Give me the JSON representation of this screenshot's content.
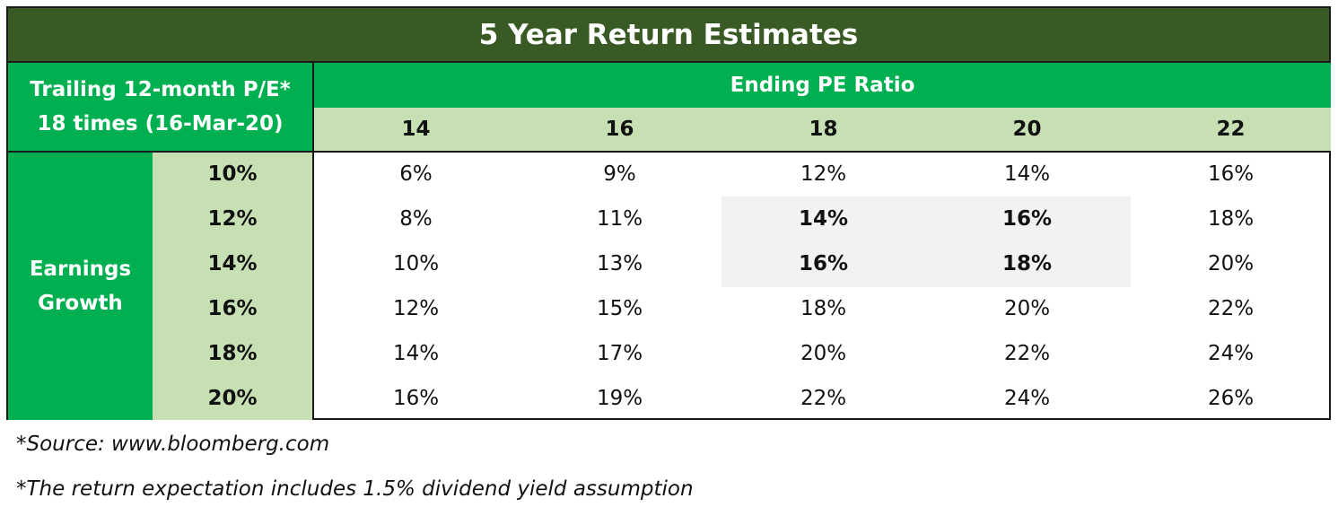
{
  "title": "5 Year Return Estimates",
  "corner": {
    "line1": "Trailing 12-month P/E*",
    "line2": "18 times (16-Mar-20)"
  },
  "column_group": "Ending PE Ratio",
  "row_group": {
    "line1": "Earnings",
    "line2": "Growth"
  },
  "pe_ratios": [
    "14",
    "16",
    "18",
    "20",
    "22"
  ],
  "earnings_growth": [
    "10%",
    "12%",
    "14%",
    "16%",
    "18%",
    "20%"
  ],
  "returns": [
    [
      "6%",
      "9%",
      "12%",
      "14%",
      "16%"
    ],
    [
      "8%",
      "11%",
      "14%",
      "16%",
      "18%"
    ],
    [
      "10%",
      "13%",
      "16%",
      "18%",
      "20%"
    ],
    [
      "12%",
      "15%",
      "18%",
      "20%",
      "22%"
    ],
    [
      "14%",
      "17%",
      "20%",
      "22%",
      "24%"
    ],
    [
      "16%",
      "19%",
      "22%",
      "24%",
      "26%"
    ]
  ],
  "highlight": {
    "rows": [
      1,
      2
    ],
    "cols": [
      2,
      3
    ],
    "color": "#f2f2f2"
  },
  "colors": {
    "title_bg": "#3a5a25",
    "accent": "#00b050",
    "light": "#c6e0b4"
  },
  "notes": {
    "source": "*Source: www.bloomberg.com",
    "dividend": "*The return expectation includes 1.5% dividend yield assumption"
  }
}
